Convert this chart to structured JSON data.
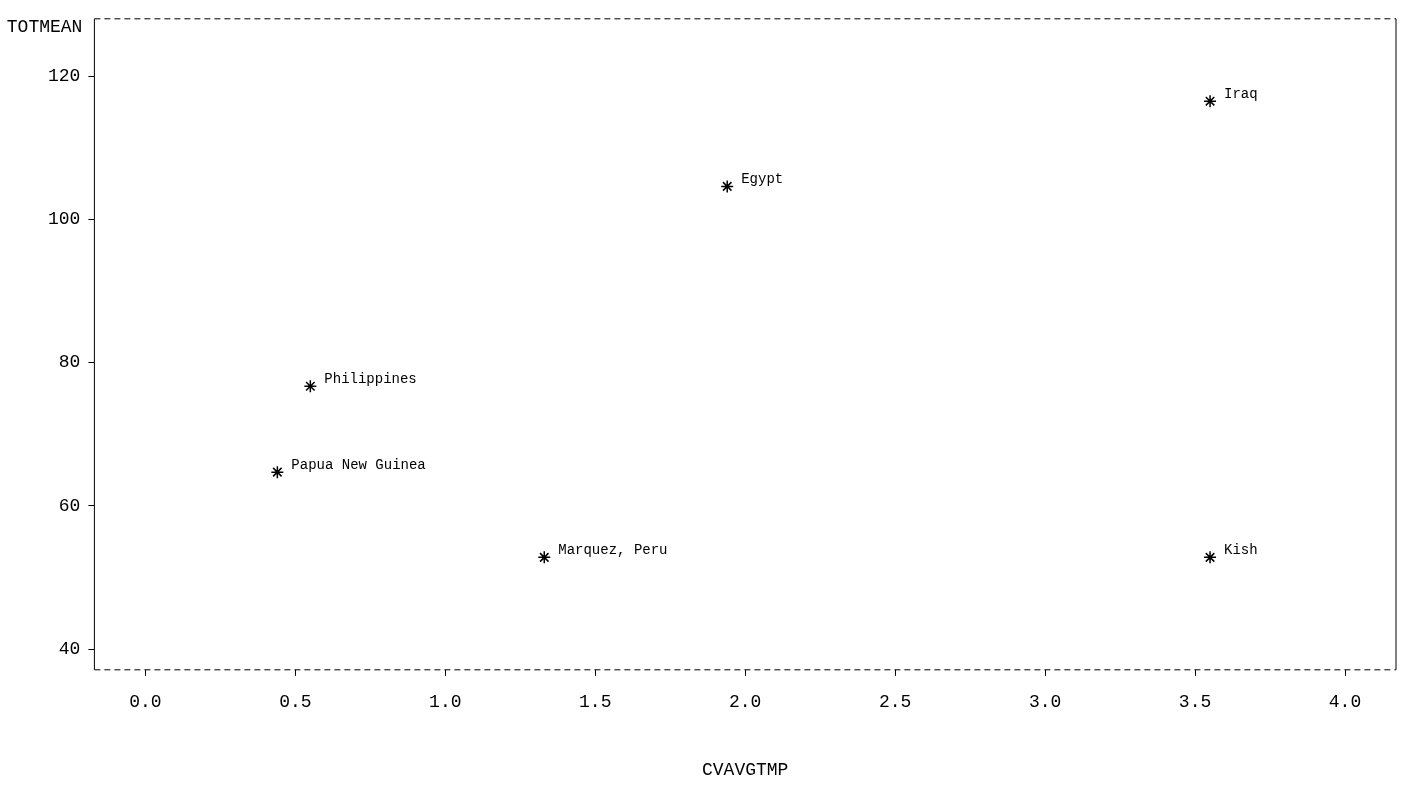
{
  "chart_data": {
    "type": "scatter",
    "xlabel": "CVAVGTMP",
    "ylabel": "TOTMEAN",
    "x": [
      3.55,
      1.94,
      0.55,
      0.44,
      1.33,
      3.55
    ],
    "values": [
      116.5,
      104.6,
      76.7,
      64.7,
      52.8,
      52.8
    ],
    "color": "#000000",
    "marker": "cross",
    "grid": false,
    "legend": false,
    "xlim": [
      -0.17,
      4.17
    ],
    "xticks": [
      {
        "value": 0,
        "label": "0.0"
      },
      {
        "value": 0.5,
        "label": "0.5"
      },
      {
        "value": 1,
        "label": "1.0"
      },
      {
        "value": 1.5,
        "label": "1.5"
      },
      {
        "value": 2,
        "label": "2.0"
      },
      {
        "value": 2.5,
        "label": "2.5"
      },
      {
        "value": 3,
        "label": "3.0"
      },
      {
        "value": 3.5,
        "label": "3.5"
      },
      {
        "value": 4,
        "label": "4.0"
      }
    ],
    "ylim": [
      37.1,
      128
    ],
    "yticks": [
      40,
      60,
      80,
      100,
      120
    ],
    "annotations": [
      {
        "text": "Iraq",
        "x": 3.55,
        "y": 116.5
      },
      {
        "text": "Egypt",
        "x": 1.94,
        "y": 104.6
      },
      {
        "text": "Philippines",
        "x": 0.55,
        "y": 76.7
      },
      {
        "text": "Papua New Guinea",
        "x": 0.44,
        "y": 64.7
      },
      {
        "text": "Marquez, Peru",
        "x": 1.33,
        "y": 52.8
      },
      {
        "text": "Kish",
        "x": 3.55,
        "y": 52.8
      }
    ]
  }
}
